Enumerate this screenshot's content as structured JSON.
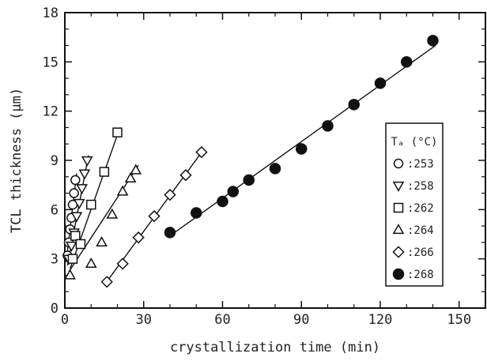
{
  "chart_data": {
    "type": "scatter",
    "xlabel": "crystallization time (min)",
    "ylabel": "TCL thickness (μm)",
    "xlim": [
      0,
      160
    ],
    "ylim": [
      0,
      18
    ],
    "xticks": [
      "0",
      "30",
      "60",
      "90",
      "120",
      "150"
    ],
    "yticks": [
      "0",
      "3",
      "6",
      "9",
      "12",
      "15",
      "18"
    ],
    "legend": {
      "title": "Tₐ (°C)",
      "position": "right"
    },
    "series": [
      {
        "name": ":253",
        "marker": "circle-open",
        "x": [
          1,
          1.5,
          2,
          2.5,
          3,
          3.5,
          4
        ],
        "y": [
          3.2,
          4.0,
          4.8,
          5.5,
          6.3,
          7.0,
          7.8
        ],
        "fit": [
          [
            0.5,
            2.8
          ],
          [
            4.5,
            8.2
          ]
        ]
      },
      {
        "name": ":258",
        "marker": "triangle-down-open",
        "x": [
          1.5,
          2.5,
          3.5,
          4.5,
          5.5,
          6.5,
          7.5,
          8.5
        ],
        "y": [
          3.0,
          3.8,
          4.6,
          5.6,
          6.4,
          7.3,
          8.2,
          9.0
        ],
        "fit": [
          [
            1,
            2.6
          ],
          [
            9,
            9.3
          ]
        ]
      },
      {
        "name": ":262",
        "marker": "square-open",
        "x": [
          3,
          4,
          6,
          10,
          15,
          20
        ],
        "y": [
          3.0,
          4.4,
          3.9,
          6.3,
          8.3,
          10.7
        ],
        "fit": [
          [
            2,
            2.4
          ],
          [
            21,
            11.0
          ]
        ]
      },
      {
        "name": ":264",
        "marker": "triangle-up-open",
        "x": [
          2,
          10,
          14,
          18,
          22,
          25,
          27
        ],
        "y": [
          2.0,
          2.7,
          4.0,
          5.7,
          7.1,
          7.9,
          8.4
        ],
        "fit": [
          [
            1.5,
            2.2
          ],
          [
            28,
            8.7
          ]
        ]
      },
      {
        "name": ":266",
        "marker": "diamond-open",
        "x": [
          16,
          22,
          28,
          34,
          40,
          46,
          52
        ],
        "y": [
          1.6,
          2.7,
          4.3,
          5.6,
          6.9,
          8.1,
          9.5
        ],
        "fit": [
          [
            15,
            1.4
          ],
          [
            53,
            9.7
          ]
        ]
      },
      {
        "name": ":268",
        "marker": "circle-filled",
        "x": [
          40,
          50,
          60,
          64,
          70,
          80,
          90,
          100,
          110,
          120,
          130,
          140
        ],
        "y": [
          4.6,
          5.8,
          6.5,
          7.1,
          7.8,
          8.5,
          9.7,
          11.1,
          12.4,
          13.7,
          15.0,
          16.3
        ],
        "fit": [
          [
            40,
            4.4
          ],
          [
            141,
            16.0
          ]
        ]
      }
    ]
  }
}
